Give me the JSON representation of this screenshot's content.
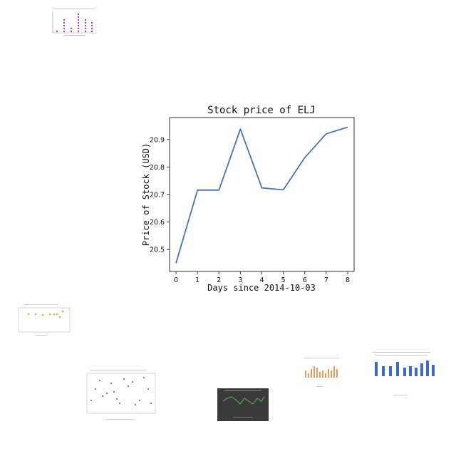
{
  "chart_data": {
    "type": "line",
    "title": "Stock price of ELJ",
    "xlabel": "Days since 2014-10-03",
    "ylabel": "Price of Stock (USD)",
    "x": [
      0,
      1,
      2,
      3,
      4,
      5,
      6,
      7,
      8
    ],
    "y": [
      20.45,
      20.716,
      20.716,
      20.938,
      20.724,
      20.717,
      20.834,
      20.921,
      20.945
    ],
    "x_ticks": [
      "0",
      "1",
      "2",
      "3",
      "4",
      "5",
      "6",
      "7",
      "8"
    ],
    "y_ticks": [
      "20.5",
      "20.6",
      "20.7",
      "20.8",
      "20.9"
    ],
    "xlim": [
      -0.3,
      8.3
    ],
    "ylim": [
      20.42,
      20.98
    ],
    "grid": false,
    "line_color": "#4c72b0"
  },
  "thumbnails": [
    {
      "kind": "dot-bar",
      "color": "#a0449a"
    },
    {
      "kind": "scatter",
      "color": "#c7b24a"
    },
    {
      "kind": "scatter",
      "color": "#888888"
    },
    {
      "kind": "line-dark",
      "color": "#5cb85c"
    },
    {
      "kind": "bar",
      "color": "#e89a5c"
    },
    {
      "kind": "bar",
      "color": "#3a6bc8"
    }
  ]
}
